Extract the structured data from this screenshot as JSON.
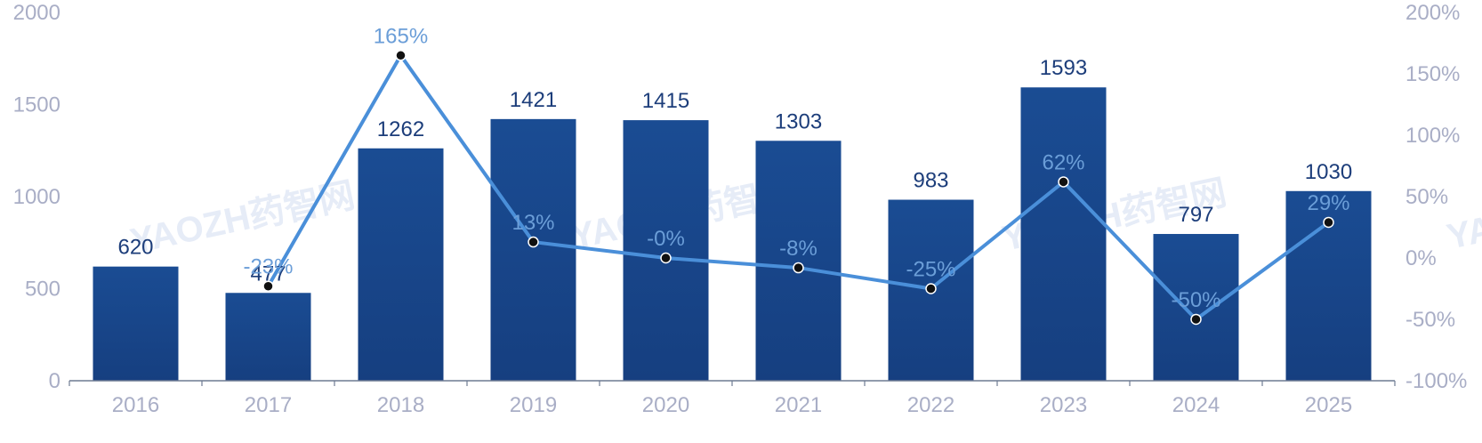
{
  "chart_data": {
    "type": "bar+line",
    "categories": [
      "2016",
      "2017",
      "2018",
      "2019",
      "2020",
      "2021",
      "2022",
      "2023",
      "2024",
      "2025"
    ],
    "series": [
      {
        "name": "count",
        "kind": "bar",
        "axis": "left",
        "values": [
          620,
          477,
          1262,
          1421,
          1415,
          1303,
          983,
          1593,
          797,
          1030
        ],
        "color": "#18498f"
      },
      {
        "name": "growth",
        "kind": "line",
        "axis": "right",
        "values": [
          null,
          -23,
          165,
          13,
          0,
          -8,
          -25,
          62,
          -50,
          29
        ],
        "color": "#4a8fd9"
      }
    ],
    "bar_labels": [
      "620",
      "477",
      "1262",
      "1421",
      "1415",
      "1303",
      "983",
      "1593",
      "797",
      "1030"
    ],
    "line_labels": [
      "",
      "-23%",
      "165%",
      "13%",
      "-0%",
      "-8%",
      "-25%",
      "62%",
      "-50%",
      "29%"
    ],
    "y_left": {
      "ticks": [
        "0",
        "500",
        "1000",
        "1500",
        "2000"
      ],
      "range": [
        0,
        2000
      ]
    },
    "y_right": {
      "ticks": [
        "-100%",
        "-50%",
        "0%",
        "50%",
        "100%",
        "150%",
        "200%"
      ],
      "range": [
        -100,
        200
      ]
    },
    "title": "",
    "xlabel": "",
    "ylabel": "",
    "grid": false,
    "watermark": "YAOZH药智网"
  }
}
